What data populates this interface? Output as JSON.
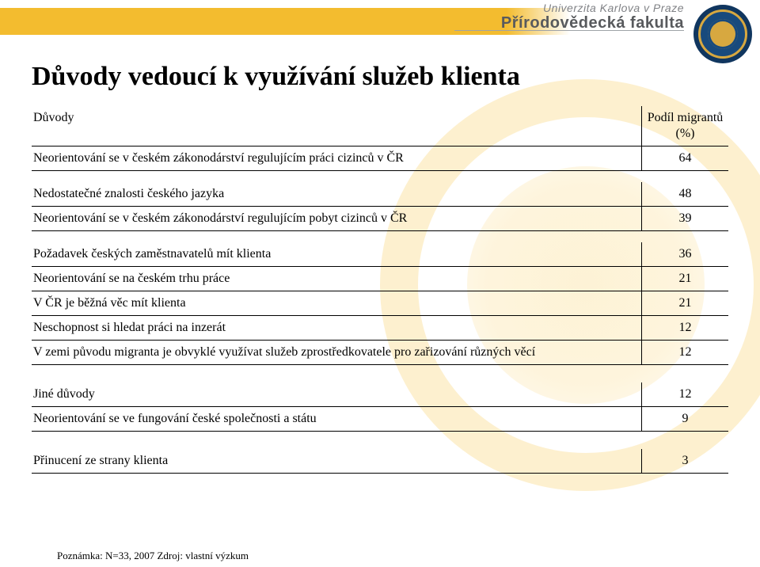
{
  "header": {
    "university": "Univerzita Karlova v Praze",
    "faculty": "Přírodovědecká fakulta"
  },
  "title": "Důvody vedoucí k využívání služeb klienta",
  "colors": {
    "gold": "#f3bc2f",
    "seal_navy": "#10365f",
    "seal_gold": "#d7a840",
    "watermark": "rgba(247,197,65,0.22)",
    "text": "#000000",
    "border": "#000000"
  },
  "table": {
    "header_left": "Důvody",
    "header_right": "Podíl migrantů\n(%)",
    "groups": [
      [
        {
          "label": "Neorientování se v českém zákonodárství regulujícím práci cizinců v ČR",
          "value": "64"
        }
      ],
      [
        {
          "label": "Nedostatečné znalosti českého jazyka",
          "value": "48"
        },
        {
          "label": "Neorientování se v českém zákonodárství regulujícím pobyt cizinců v ČR",
          "value": "39"
        }
      ],
      [
        {
          "label": "Požadavek českých zaměstnavatelů mít klienta",
          "value": "36"
        },
        {
          "label": "Neorientování se na českém trhu práce",
          "value": "21"
        },
        {
          "label": "V ČR je běžná věc mít klienta",
          "value": "21"
        },
        {
          "label": "Neschopnost si hledat práci na inzerát",
          "value": "12"
        },
        {
          "label": "V zemi původu migranta je obvyklé využívat služeb zprostředkovatele pro zařizování různých věcí",
          "value": "12"
        }
      ],
      [
        {
          "label": "Jiné důvody",
          "value": "12"
        },
        {
          "label": "Neorientování se ve fungování české společnosti a státu",
          "value": "9"
        }
      ],
      [
        {
          "label": "Přinucení ze strany klienta",
          "value": "3"
        }
      ]
    ]
  },
  "note": "Poznámka: N=33, 2007 Zdroj: vlastní výzkum"
}
